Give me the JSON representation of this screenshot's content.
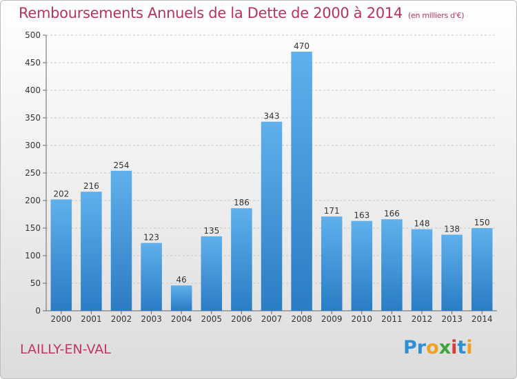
{
  "title": "Remboursements Annuels de la Dette de 2000 à 2014",
  "subtitle": "(en milliers d'€)",
  "commune": "LAILLY-EN-VAL",
  "brand": {
    "letters": [
      {
        "ch": "P",
        "color": "#2f8fd6"
      },
      {
        "ch": "r",
        "color": "#2f8fd6"
      },
      {
        "ch": "o",
        "color": "#f0a020"
      },
      {
        "ch": "x",
        "color": "#3aa53a"
      },
      {
        "ch": "i",
        "color": "#d63a3a"
      },
      {
        "ch": "t",
        "color": "#2f8fd6"
      },
      {
        "ch": "i",
        "color": "#f0a020"
      }
    ]
  },
  "chart_data": {
    "type": "bar",
    "categories": [
      "2000",
      "2001",
      "2002",
      "2003",
      "2004",
      "2005",
      "2006",
      "2007",
      "2008",
      "2009",
      "2010",
      "2011",
      "2012",
      "2013",
      "2014"
    ],
    "values": [
      202,
      216,
      254,
      123,
      46,
      135,
      186,
      343,
      470,
      171,
      163,
      166,
      148,
      138,
      150
    ],
    "ylim": [
      0,
      500
    ],
    "yticks": [
      0,
      50,
      100,
      150,
      200,
      250,
      300,
      350,
      400,
      450,
      500
    ],
    "grid": true,
    "bar_color": "#4a9fe0",
    "title_color": "#b5345c"
  }
}
